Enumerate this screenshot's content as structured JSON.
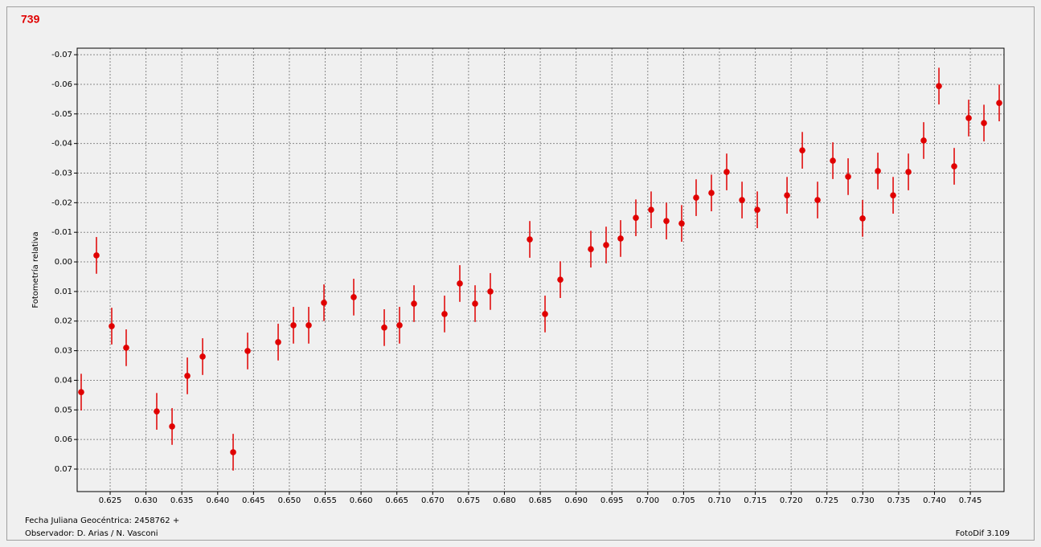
{
  "chart_data": {
    "type": "scatter",
    "title": "739",
    "ylabel": "Fotometría relativa",
    "footer_left_1": "Fecha Juliana Geocéntrica: 2458762 +",
    "footer_left_2": "Observador: D. Arias / N. Vasconi",
    "footer_right": "FotoDif 3.109",
    "color": "#e00000",
    "grid": true,
    "xlim": [
      0.6204,
      0.7497
    ],
    "ylim": [
      0.0776,
      -0.0722
    ],
    "xticks": [
      0.625,
      {
        "value": 0.63,
        "label": "0.630"
      },
      0.635,
      {
        "value": 0.64,
        "label": "0.640"
      },
      0.645,
      {
        "value": 0.65,
        "label": "0.650"
      },
      0.655,
      {
        "value": 0.66,
        "label": "0.660"
      },
      0.665,
      {
        "value": 0.67,
        "label": "0.670"
      },
      0.675,
      {
        "value": 0.68,
        "label": "0.680"
      },
      0.685,
      {
        "value": 0.69,
        "label": "0.690"
      },
      0.695,
      {
        "value": 0.7,
        "label": "0.700"
      },
      0.705,
      {
        "value": 0.71,
        "label": "0.710"
      },
      0.715,
      {
        "value": 0.72,
        "label": "0.720"
      },
      0.725,
      {
        "value": 0.73,
        "label": "0.730"
      },
      0.735,
      {
        "value": 0.74,
        "label": "0.740"
      },
      0.745
    ],
    "yticks": [
      -0.07,
      -0.06,
      -0.05,
      -0.04,
      -0.03,
      -0.02,
      -0.01,
      {
        "value": 0,
        "label": "0.00"
      },
      0.01,
      0.02,
      0.03,
      0.04,
      0.05,
      0.06,
      0.07
    ],
    "x": [
      0.62096,
      0.62309,
      0.62522,
      0.62724,
      0.6315,
      0.63364,
      0.63577,
      0.6379,
      0.64216,
      0.64418,
      0.64844,
      0.65057,
      0.6527,
      0.65483,
      0.65898,
      0.66324,
      0.66537,
      0.66739,
      0.67165,
      0.67378,
      0.67591,
      0.67804,
      0.68354,
      0.68567,
      0.6878,
      0.69206,
      0.69419,
      0.69621,
      0.69834,
      0.70047,
      0.7026,
      0.70473,
      0.70675,
      0.70888,
      0.71101,
      0.71315,
      0.71528,
      0.71943,
      0.72156,
      0.72369,
      0.72582,
      0.72795,
      0.72997,
      0.7321,
      0.73423,
      0.73636,
      0.73849,
      0.74062,
      0.74275,
      0.74477,
      0.7469,
      0.74903
    ],
    "y": [
      0.044,
      -0.0022,
      0.0217,
      0.029,
      0.0505,
      0.0556,
      0.0385,
      0.032,
      0.0643,
      0.0301,
      0.0271,
      0.0214,
      0.0214,
      0.0138,
      0.0119,
      0.0222,
      0.0214,
      0.0141,
      0.0176,
      0.0073,
      0.0141,
      0.01,
      -0.0076,
      0.0176,
      0.006,
      -0.0043,
      -0.0057,
      -0.0079,
      -0.0149,
      -0.0176,
      -0.0138,
      -0.013,
      -0.0217,
      -0.0233,
      -0.0304,
      -0.0209,
      -0.0176,
      -0.0225,
      -0.0377,
      -0.0209,
      -0.0342,
      -0.0288,
      -0.0147,
      -0.0307,
      -0.0225,
      -0.0304,
      -0.041,
      -0.0594,
      -0.0323,
      -0.0486,
      -0.0469,
      -0.0537
    ],
    "errors": [
      0.0062,
      0.0062,
      0.0062,
      0.0062,
      0.0062,
      0.0062,
      0.0062,
      0.0062,
      0.0062,
      0.0062,
      0.0062,
      0.0062,
      0.0062,
      0.0062,
      0.0062,
      0.0062,
      0.0062,
      0.0062,
      0.0062,
      0.0062,
      0.0062,
      0.0062,
      0.0062,
      0.0062,
      0.0062,
      0.0062,
      0.0062,
      0.0062,
      0.0062,
      0.0062,
      0.0062,
      0.0062,
      0.0062,
      0.0062,
      0.0062,
      0.0062,
      0.0062,
      0.0062,
      0.0062,
      0.0062,
      0.0062,
      0.0062,
      0.0062,
      0.0062,
      0.0062,
      0.0062,
      0.0062,
      0.0062,
      0.0062,
      0.0062,
      0.0062,
      0.0062
    ]
  }
}
